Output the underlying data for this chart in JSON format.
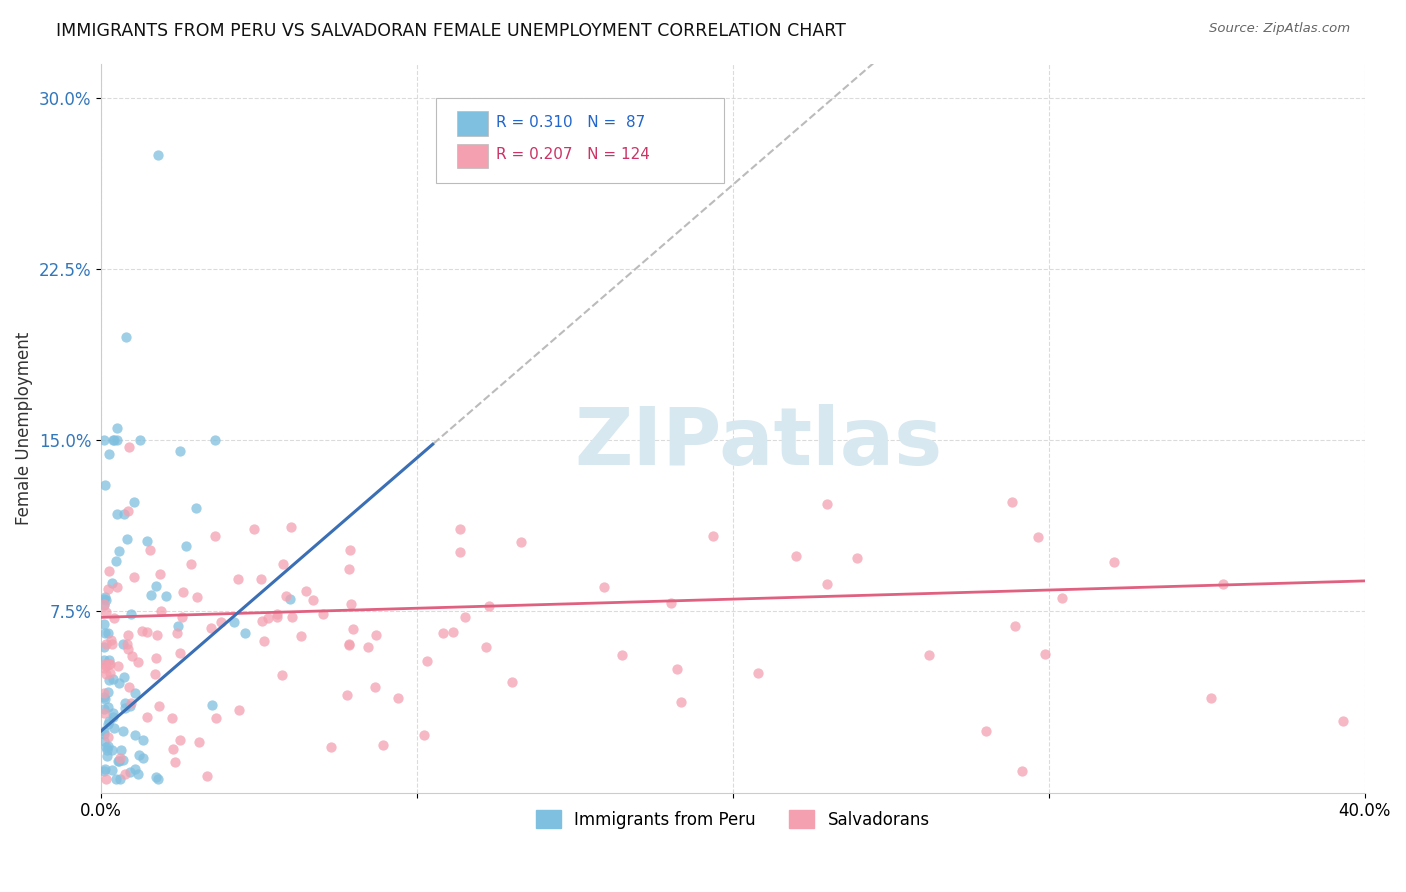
{
  "title": "IMMIGRANTS FROM PERU VS SALVADORAN FEMALE UNEMPLOYMENT CORRELATION CHART",
  "source": "Source: ZipAtlas.com",
  "ylabel": "Female Unemployment",
  "color_peru": "#7FBFDF",
  "color_salvador": "#F4A0B0",
  "color_trendline_peru": "#3A6EB5",
  "color_trendline_salvador": "#E06080",
  "color_extrapolation": "#BBBBBB",
  "watermark_color": "#D8E8F0",
  "background_color": "#FFFFFF",
  "xlim": [
    0.0,
    0.4
  ],
  "ylim": [
    -0.005,
    0.315
  ],
  "yticks": [
    0.075,
    0.15,
    0.225,
    0.3
  ],
  "ytick_labels": [
    "7.5%",
    "15.0%",
    "22.5%",
    "30.0%"
  ],
  "xtick_labels": [
    "0.0%",
    "",
    "",
    "",
    "40.0%"
  ],
  "legend_r1": "R = 0.310",
  "legend_n1": "N =  87",
  "legend_r2": "R = 0.207",
  "legend_n2": "N = 124",
  "peru_slope": 1.2,
  "peru_intercept": 0.022,
  "salvador_slope": 0.04,
  "salvador_intercept": 0.072
}
